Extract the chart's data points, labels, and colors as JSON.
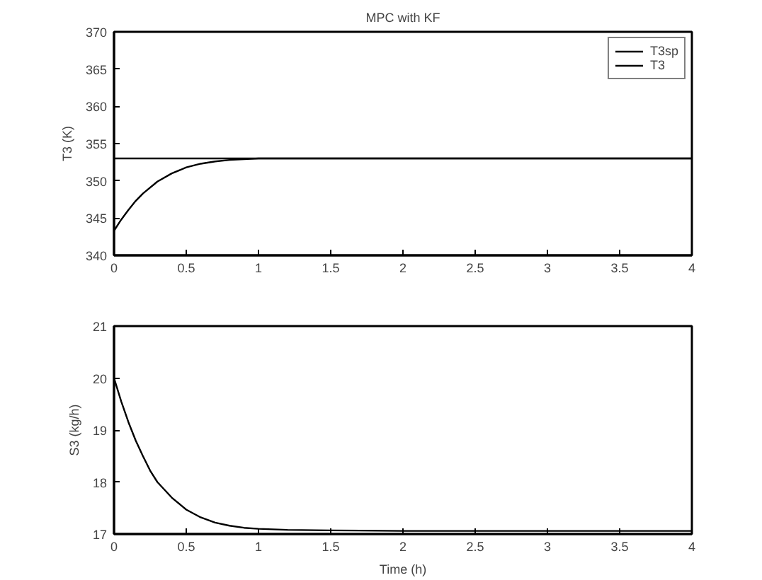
{
  "chart_data": [
    {
      "type": "line",
      "title": "MPC with KF",
      "ylabel": "T3 (K)",
      "xlim": [
        0,
        4
      ],
      "ylim": [
        340,
        370
      ],
      "xticks": [
        0,
        0.5,
        1,
        1.5,
        2,
        2.5,
        3,
        3.5,
        4
      ],
      "yticks": [
        340,
        345,
        350,
        355,
        360,
        365,
        370
      ],
      "legend": "top right",
      "grid": false,
      "series": [
        {
          "name": "T3sp",
          "color": "#000000",
          "x": [
            0,
            4
          ],
          "values": [
            353,
            353
          ]
        },
        {
          "name": "T3",
          "color": "#000000",
          "x": [
            0,
            0.05,
            0.1,
            0.15,
            0.2,
            0.3,
            0.4,
            0.5,
            0.6,
            0.7,
            0.8,
            0.9,
            1.0,
            1.5,
            2,
            3,
            4
          ],
          "values": [
            343.3,
            344.8,
            346.1,
            347.3,
            348.3,
            349.9,
            351.0,
            351.8,
            352.3,
            352.6,
            352.8,
            352.9,
            353,
            353,
            353,
            353,
            353
          ]
        }
      ]
    },
    {
      "type": "line",
      "xlabel": "Time (h)",
      "ylabel": "S3 (kg/h)",
      "xlim": [
        0,
        4
      ],
      "ylim": [
        17,
        21
      ],
      "xticks": [
        0,
        0.5,
        1,
        1.5,
        2,
        2.5,
        3,
        3.5,
        4
      ],
      "yticks": [
        17,
        18,
        19,
        20,
        21
      ],
      "grid": false,
      "series": [
        {
          "color": "#000000",
          "x": [
            0,
            0.05,
            0.1,
            0.15,
            0.2,
            0.25,
            0.3,
            0.4,
            0.5,
            0.6,
            0.7,
            0.8,
            0.9,
            1.0,
            1.2,
            1.5,
            2,
            2.5,
            3,
            3.5,
            4
          ],
          "values": [
            20,
            19.55,
            19.15,
            18.8,
            18.5,
            18.22,
            18.0,
            17.7,
            17.47,
            17.32,
            17.22,
            17.16,
            17.12,
            17.1,
            17.08,
            17.07,
            17.06,
            17.06,
            17.06,
            17.06,
            17.06
          ]
        }
      ]
    }
  ]
}
